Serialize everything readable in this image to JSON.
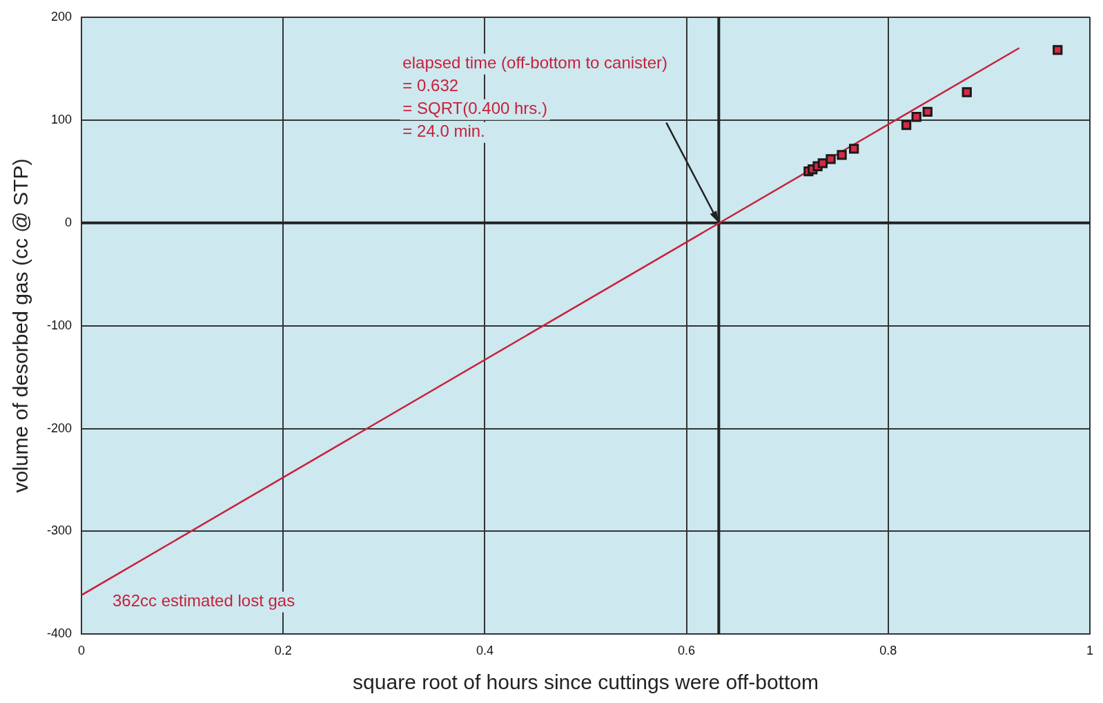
{
  "chart_data": {
    "type": "scatter",
    "xlabel": "square root of hours since cuttings were off-bottom",
    "ylabel": "volume of desorbed gas (cc @ STP)",
    "series": [
      {
        "type": "scatter",
        "color": "#d62a44",
        "marker": "square",
        "x": [
          0.721,
          0.725,
          0.73,
          0.735,
          0.743,
          0.754,
          0.766,
          0.818,
          0.828,
          0.839,
          0.878,
          0.968
        ],
        "values": [
          50,
          52,
          55,
          58,
          62,
          66,
          72,
          95,
          103,
          108,
          127,
          168
        ]
      },
      {
        "type": "line",
        "color": "#c8203a",
        "marker": "none",
        "line_style": "solid",
        "x": [
          0,
          0.93
        ],
        "values": [
          -362,
          170
        ]
      }
    ],
    "xlim": [
      0,
      1
    ],
    "xticks": [
      0,
      0.2,
      0.4,
      0.6,
      0.8,
      1
    ],
    "ylim": [
      -400,
      200
    ],
    "yticks": [
      -400,
      -300,
      -200,
      -100,
      0,
      100,
      200
    ],
    "grid": true,
    "legend": false,
    "ref_lines": [
      {
        "axis": "x",
        "value": 0.632,
        "color": "#222222"
      },
      {
        "axis": "y",
        "value": 0,
        "color": "#222222"
      }
    ],
    "annotations": [
      "elapsed time (off-bottom to canister)\n= 0.632\n= SQRT(0.400 hrs.)\n= 24.0 min.",
      {
        "text": "362cc estimated lost gas",
        "x": 0,
        "y": -362
      }
    ]
  }
}
